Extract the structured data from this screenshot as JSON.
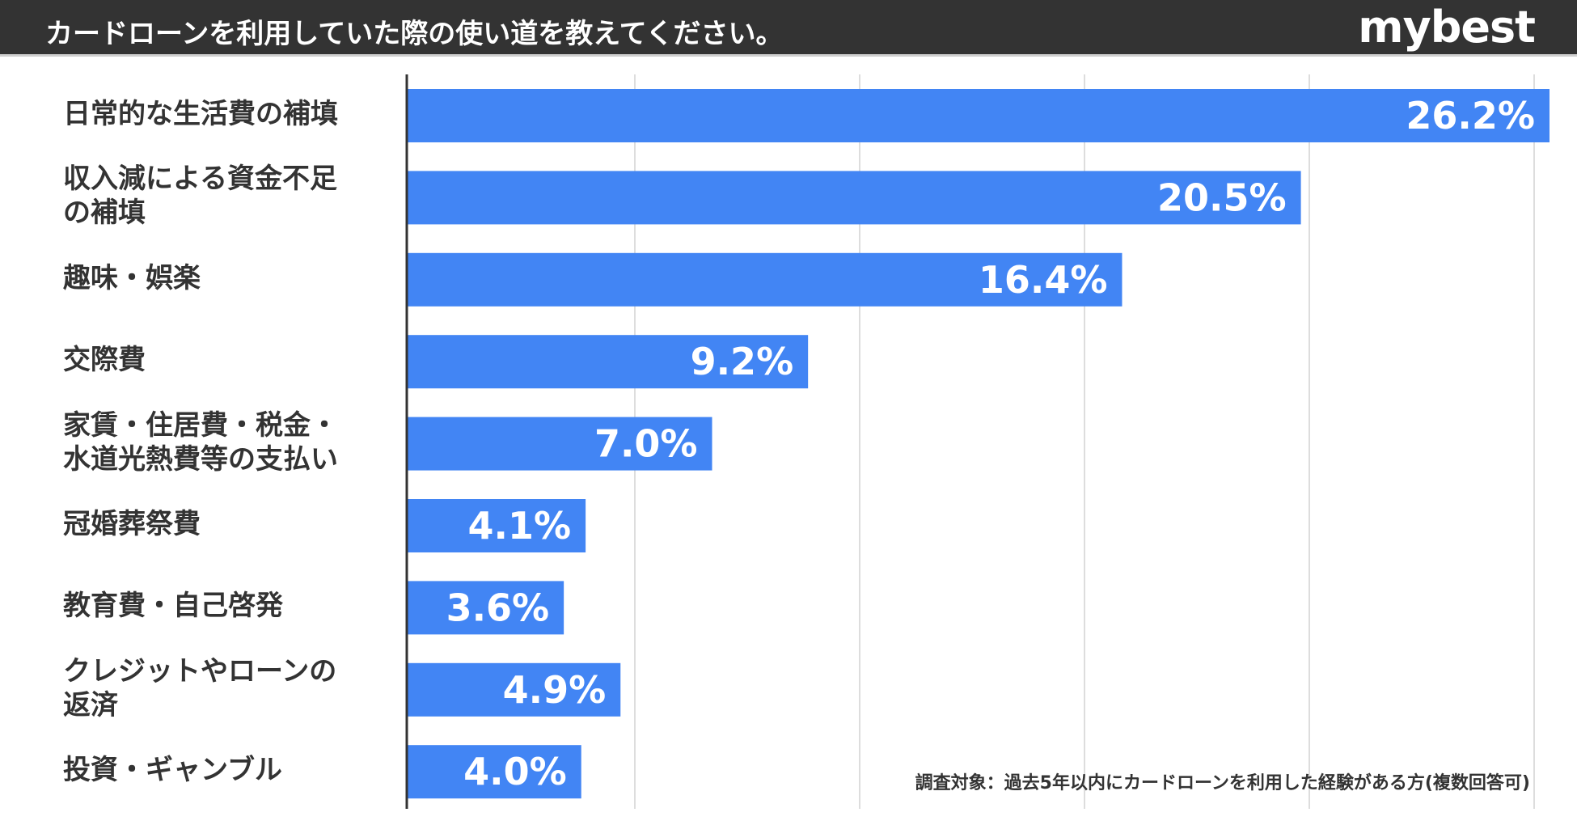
{
  "header": {
    "title": "カードローンを利用していた際の使い道を教えてください。",
    "logo": "mybest"
  },
  "colors": {
    "bar": "#4285f4",
    "header_bg": "#333333",
    "grid": "#dddddd",
    "axis": "#333333",
    "label_text": "#333333",
    "value_text": "#ffffff"
  },
  "chart_data": {
    "type": "bar",
    "orientation": "horizontal",
    "title": "カードローンを利用していた際の使い道を教えてください。",
    "categories": [
      "日常的な生活費の補填",
      "収入減による資金不足\nの補填",
      "趣味・娯楽",
      "交際費",
      "家賃・住居費・税金・\n水道光熱費等の支払い",
      "冠婚葬祭費",
      "教育費・自己啓発",
      "クレジットやローンの\n返済",
      "投資・ギャンブル"
    ],
    "values": [
      26.2,
      20.5,
      16.4,
      9.2,
      7.0,
      4.1,
      3.6,
      4.9,
      4.0
    ],
    "value_labels": [
      "26.2%",
      "20.5%",
      "16.4%",
      "9.2%",
      "7.0%",
      "4.1%",
      "3.6%",
      "4.9%",
      "4.0%"
    ],
    "xlim": [
      0,
      26.2
    ],
    "grid": true,
    "xlabel": "",
    "ylabel": ""
  },
  "footnote": "調査対象：過去5年以内にカードローンを利用した経験がある方(複数回答可)"
}
